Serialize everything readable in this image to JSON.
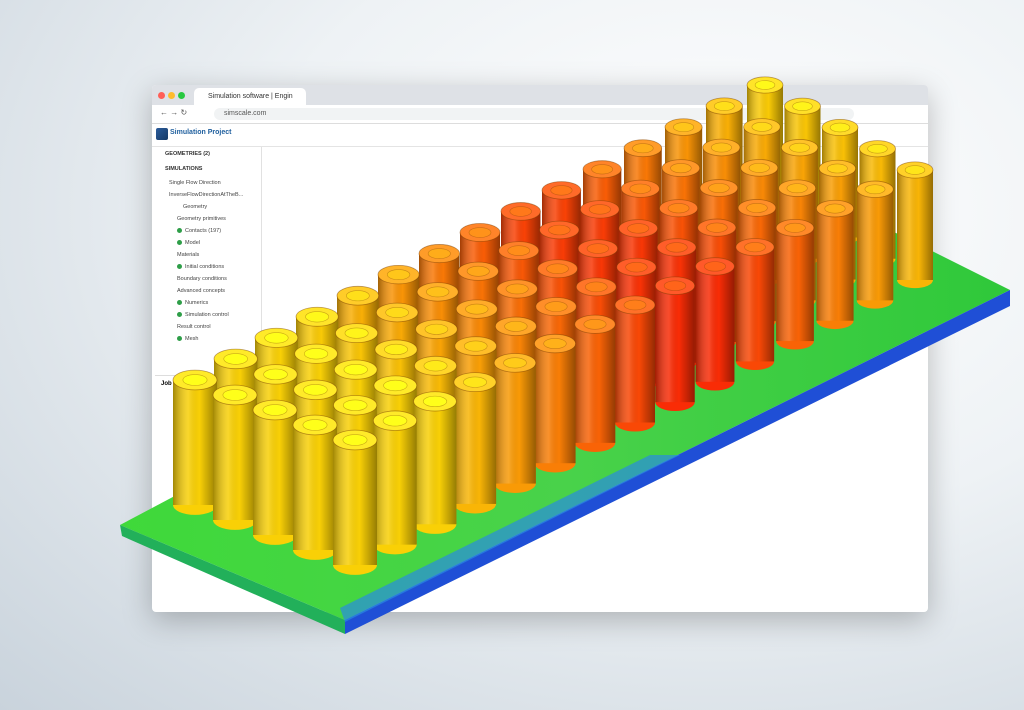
{
  "browser": {
    "tab_title": "Simulation software | Engin",
    "url": "simscale.com"
  },
  "app": {
    "project_title": "Simulation Project"
  },
  "sidebar": {
    "items": [
      "GEOMETRIES (2)",
      "SIMULATIONS",
      "Single Flow Direction",
      "InverseFlowDirectionAtTheB...",
      "Geometry",
      "Geometry primitives",
      "Contacts (197)",
      "Model",
      "Materials",
      "Initial conditions",
      "Boundary conditions",
      "Advanced concepts",
      "Numerics",
      "Simulation control",
      "Result control",
      "Mesh"
    ],
    "footer": "Job stat"
  }
}
